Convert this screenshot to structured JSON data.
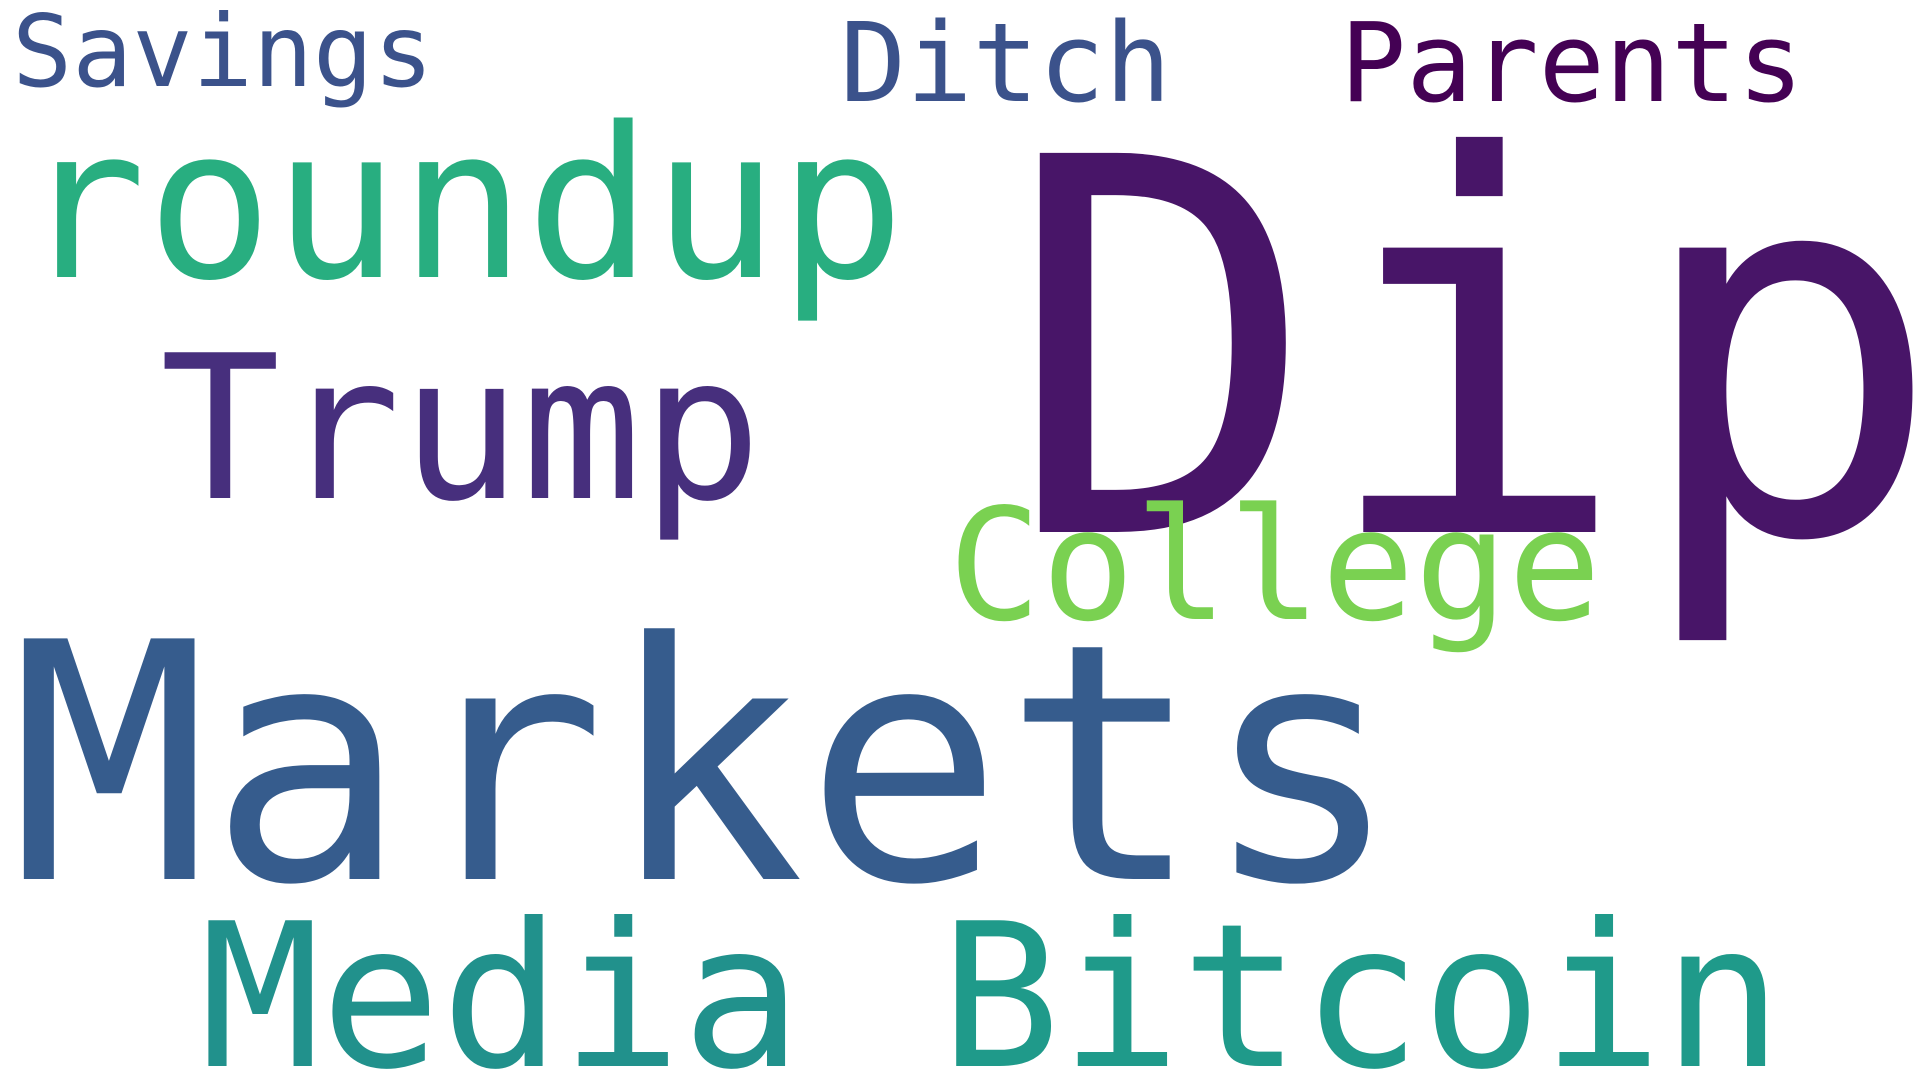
{
  "words": {
    "savings": {
      "text": "Savings",
      "color": "#3b528b"
    },
    "ditch": {
      "text": "Ditch",
      "color": "#3b528b"
    },
    "parents": {
      "text": "Parents",
      "color": "#440154"
    },
    "roundup": {
      "text": "roundup",
      "color": "#28ae80"
    },
    "dip": {
      "text": "Dip",
      "color": "#481568"
    },
    "trump": {
      "text": "Trump",
      "color": "#472f7d"
    },
    "college": {
      "text": "College",
      "color": "#7ad151"
    },
    "markets": {
      "text": "Markets",
      "color": "#365c8d"
    },
    "media": {
      "text": "Media",
      "color": "#21918c"
    },
    "bitcoin": {
      "text": "Bitcoin",
      "color": "#1f9a8a"
    }
  }
}
